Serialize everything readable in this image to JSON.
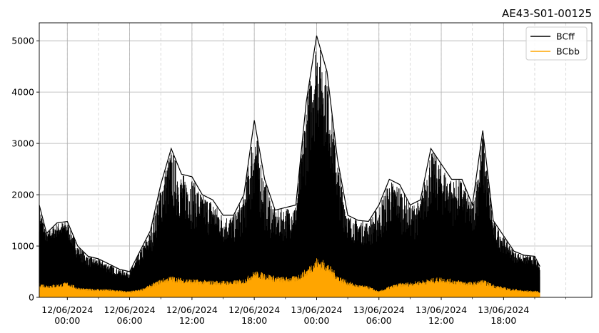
{
  "chart_data": {
    "type": "area",
    "title": "AE43-S01-00125",
    "xlabel": "",
    "ylabel": "",
    "ylim": [
      0,
      5350
    ],
    "yticks": [
      0,
      1000,
      2000,
      3000,
      4000,
      5000
    ],
    "xlim": [
      "2024-06-11T21:18",
      "2024-06-14T02:30"
    ],
    "xticks": [
      {
        "t": "2024-06-12T00:00",
        "date": "12/06/2024",
        "time": "00:00"
      },
      {
        "t": "2024-06-12T06:00",
        "date": "12/06/2024",
        "time": "06:00"
      },
      {
        "t": "2024-06-12T12:00",
        "date": "12/06/2024",
        "time": "12:00"
      },
      {
        "t": "2024-06-12T18:00",
        "date": "12/06/2024",
        "time": "18:00"
      },
      {
        "t": "2024-06-13T00:00",
        "date": "13/06/2024",
        "time": "00:00"
      },
      {
        "t": "2024-06-13T06:00",
        "date": "13/06/2024",
        "time": "06:00"
      },
      {
        "t": "2024-06-13T12:00",
        "date": "13/06/2024",
        "time": "12:00"
      },
      {
        "t": "2024-06-13T18:00",
        "date": "13/06/2024",
        "time": "18:00"
      }
    ],
    "grid": true,
    "minor_grid": true,
    "legend_position": "top-right",
    "series": [
      {
        "name": "BCff",
        "color": "#000000",
        "x": [
          "2024-06-11T21:18",
          "2024-06-11T22:00",
          "2024-06-11T23:00",
          "2024-06-12T00:00",
          "2024-06-12T01:00",
          "2024-06-12T02:00",
          "2024-06-12T03:00",
          "2024-06-12T04:00",
          "2024-06-12T05:00",
          "2024-06-12T06:00",
          "2024-06-12T07:00",
          "2024-06-12T08:00",
          "2024-06-12T09:00",
          "2024-06-12T10:00",
          "2024-06-12T11:00",
          "2024-06-12T12:00",
          "2024-06-12T13:00",
          "2024-06-12T14:00",
          "2024-06-12T15:00",
          "2024-06-12T16:00",
          "2024-06-12T17:00",
          "2024-06-12T18:00",
          "2024-06-12T19:00",
          "2024-06-12T20:00",
          "2024-06-12T21:00",
          "2024-06-12T22:00",
          "2024-06-12T23:00",
          "2024-06-13T00:00",
          "2024-06-13T01:00",
          "2024-06-13T02:00",
          "2024-06-13T03:00",
          "2024-06-13T04:00",
          "2024-06-13T05:00",
          "2024-06-13T06:00",
          "2024-06-13T07:00",
          "2024-06-13T08:00",
          "2024-06-13T09:00",
          "2024-06-13T10:00",
          "2024-06-13T11:00",
          "2024-06-13T12:00",
          "2024-06-13T13:00",
          "2024-06-13T14:00",
          "2024-06-13T15:00",
          "2024-06-13T16:00",
          "2024-06-13T17:00",
          "2024-06-13T18:00",
          "2024-06-13T19:00",
          "2024-06-13T20:00",
          "2024-06-13T21:00",
          "2024-06-13T21:30"
        ],
        "values": [
          1800,
          1250,
          1450,
          1480,
          1000,
          800,
          750,
          650,
          550,
          500,
          900,
          1300,
          2200,
          2900,
          2400,
          2350,
          2000,
          1900,
          1600,
          1600,
          2000,
          3450,
          2300,
          1700,
          1750,
          1800,
          3800,
          5100,
          4400,
          2700,
          1600,
          1500,
          1480,
          1800,
          2300,
          2200,
          1800,
          1900,
          2900,
          2600,
          2300,
          2300,
          1800,
          3250,
          1500,
          1200,
          900,
          820,
          800,
          600
        ],
        "low": [
          1000,
          900,
          950,
          900,
          600,
          450,
          400,
          350,
          300,
          300,
          400,
          550,
          800,
          900,
          750,
          750,
          700,
          700,
          650,
          650,
          700,
          700,
          650,
          600,
          700,
          900,
          1300,
          2000,
          1900,
          1000,
          800,
          750,
          700,
          500,
          650,
          750,
          700,
          800,
          900,
          900,
          850,
          850,
          800,
          1000,
          700,
          650,
          550,
          500,
          500,
          400
        ]
      },
      {
        "name": "BCbb",
        "color": "#FFA500",
        "x": [
          "2024-06-11T21:18",
          "2024-06-11T22:00",
          "2024-06-11T23:00",
          "2024-06-12T00:00",
          "2024-06-12T01:00",
          "2024-06-12T02:00",
          "2024-06-12T03:00",
          "2024-06-12T04:00",
          "2024-06-12T05:00",
          "2024-06-12T06:00",
          "2024-06-12T07:00",
          "2024-06-12T08:00",
          "2024-06-12T09:00",
          "2024-06-12T10:00",
          "2024-06-12T11:00",
          "2024-06-12T12:00",
          "2024-06-12T13:00",
          "2024-06-12T14:00",
          "2024-06-12T15:00",
          "2024-06-12T16:00",
          "2024-06-12T17:00",
          "2024-06-12T18:00",
          "2024-06-12T19:00",
          "2024-06-12T20:00",
          "2024-06-12T21:00",
          "2024-06-12T22:00",
          "2024-06-12T23:00",
          "2024-06-13T00:00",
          "2024-06-13T01:00",
          "2024-06-13T02:00",
          "2024-06-13T03:00",
          "2024-06-13T04:00",
          "2024-06-13T05:00",
          "2024-06-13T06:00",
          "2024-06-13T07:00",
          "2024-06-13T08:00",
          "2024-06-13T09:00",
          "2024-06-13T10:00",
          "2024-06-13T11:00",
          "2024-06-13T12:00",
          "2024-06-13T13:00",
          "2024-06-13T14:00",
          "2024-06-13T15:00",
          "2024-06-13T16:00",
          "2024-06-13T17:00",
          "2024-06-13T18:00",
          "2024-06-13T19:00",
          "2024-06-13T20:00",
          "2024-06-13T21:00",
          "2024-06-13T21:30"
        ],
        "values": [
          280,
          250,
          260,
          300,
          200,
          170,
          170,
          160,
          140,
          120,
          160,
          250,
          360,
          420,
          380,
          360,
          340,
          330,
          330,
          330,
          360,
          520,
          480,
          420,
          400,
          420,
          560,
          780,
          700,
          450,
          320,
          250,
          220,
          120,
          220,
          280,
          300,
          330,
          370,
          400,
          360,
          330,
          300,
          350,
          260,
          200,
          170,
          140,
          130,
          120
        ]
      }
    ]
  }
}
